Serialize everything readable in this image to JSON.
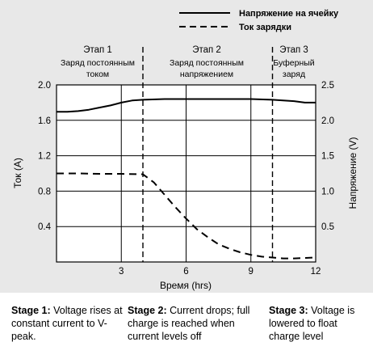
{
  "legend": [
    {
      "label": "Напряжение на ячейку",
      "style": "solid"
    },
    {
      "label": "Ток зарядки",
      "style": "dashed"
    }
  ],
  "stage_headers": [
    {
      "title": "Этап 1",
      "line1": "Заряд постоянным",
      "line2": "током"
    },
    {
      "title": "Этап 2",
      "line1": "Заряд постоянным",
      "line2": "напряжением"
    },
    {
      "title": "Этап 3",
      "line1": "Буферный",
      "line2": "заряд"
    }
  ],
  "captions": [
    {
      "bold": "Stage 1:",
      "text": " Voltage rises at constant current to V-peak."
    },
    {
      "bold": "Stage 2:",
      "text": " Current drops; full charge is reached when current levels off"
    },
    {
      "bold": "Stage 3:",
      "text": " Voltage is lowered to float charge level"
    }
  ],
  "chart_data": {
    "type": "line",
    "xlabel": "Время (hrs)",
    "ylabel_left": "Ток (A)",
    "ylabel_right": "Напряжение (V)",
    "xlim": [
      0,
      12
    ],
    "ylim_left": [
      0,
      2.0
    ],
    "ylim_right": [
      0,
      2.5
    ],
    "x_ticks": [
      "3",
      "6",
      "9",
      "12"
    ],
    "y_left_ticks": [
      "2.0",
      "1.6",
      "1.2",
      "0.8",
      "0.4"
    ],
    "y_right_ticks": [
      "2.5",
      "2.0",
      "1.5",
      "1.0",
      "0.5"
    ],
    "stage_boundaries": [
      4,
      10
    ],
    "grid": true,
    "series": [
      {
        "name": "Напряжение на ячейку",
        "axis": "right",
        "style": "solid",
        "x": [
          0,
          0.5,
          1,
          1.5,
          2,
          2.5,
          3,
          3.5,
          4,
          5,
          6,
          7,
          8,
          9,
          10,
          11,
          11.5,
          12
        ],
        "y": [
          2.12,
          2.12,
          2.13,
          2.15,
          2.18,
          2.21,
          2.25,
          2.28,
          2.29,
          2.3,
          2.3,
          2.3,
          2.3,
          2.3,
          2.29,
          2.27,
          2.25,
          2.25
        ]
      },
      {
        "name": "Ток зарядки",
        "axis": "left",
        "style": "dashed",
        "x": [
          0,
          1,
          2,
          3,
          4,
          4.5,
          5,
          5.5,
          6,
          6.5,
          7,
          7.5,
          8,
          8.5,
          9,
          9.5,
          10,
          10.5,
          11,
          12
        ],
        "y": [
          1.0,
          1.0,
          0.995,
          0.995,
          0.99,
          0.9,
          0.76,
          0.62,
          0.49,
          0.37,
          0.28,
          0.2,
          0.15,
          0.11,
          0.08,
          0.06,
          0.05,
          0.04,
          0.04,
          0.05
        ]
      }
    ]
  }
}
